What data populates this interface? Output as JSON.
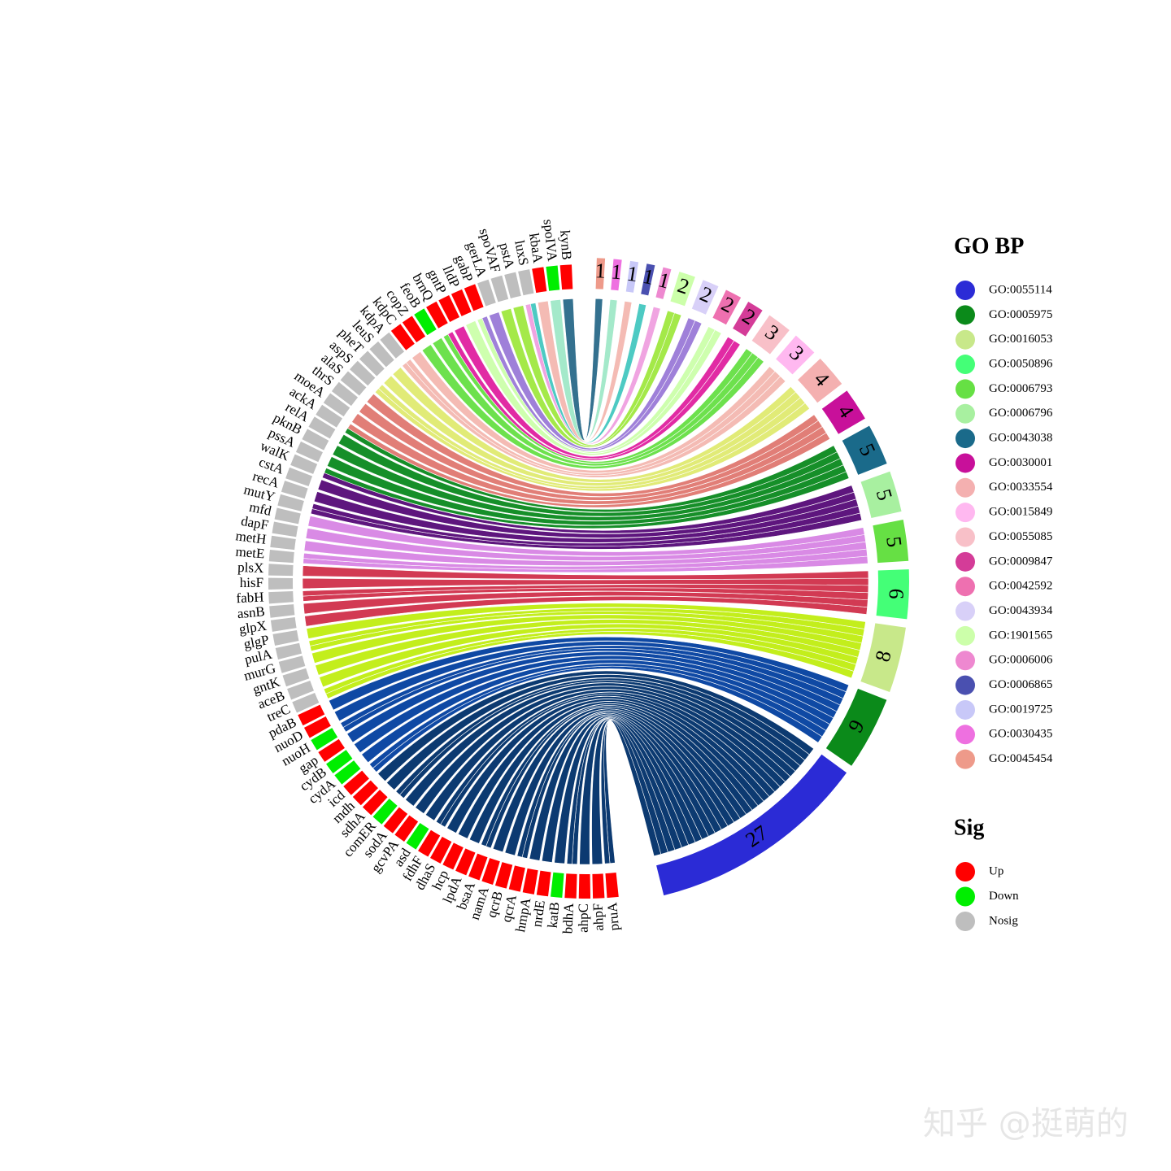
{
  "chart_data": {
    "type": "chord",
    "terms": [
      {
        "name": "GO:0055114",
        "count": 27,
        "color": "#2b2bd6",
        "link_color": "#00306a"
      },
      {
        "name": "GO:0005975",
        "count": 9,
        "color": "#0b8a1a",
        "link_color": "#0340a0"
      },
      {
        "name": "GO:0016053",
        "count": 8,
        "color": "#c8e88a",
        "link_color": "#c0ee10"
      },
      {
        "name": "GO:0050896",
        "count": 6,
        "color": "#44ff77",
        "link_color": "#d0304a"
      },
      {
        "name": "GO:0006793",
        "count": 5,
        "color": "#66e044",
        "link_color": "#d884e4"
      },
      {
        "name": "GO:0006796",
        "count": 5,
        "color": "#a8f0a0",
        "link_color": "#560a78"
      },
      {
        "name": "GO:0043038",
        "count": 5,
        "color": "#1a6a8a",
        "link_color": "#0a8a1e"
      },
      {
        "name": "GO:0030001",
        "count": 4,
        "color": "#c8109a",
        "link_color": "#e07870"
      },
      {
        "name": "GO:0033554",
        "count": 4,
        "color": "#f4b0b0",
        "link_color": "#e0ea70"
      },
      {
        "name": "GO:0015849",
        "count": 3,
        "color": "#ffb8f0",
        "link_color": "#f4b8b0"
      },
      {
        "name": "GO:0055085",
        "count": 3,
        "color": "#f8c0c8",
        "link_color": "#66e044"
      },
      {
        "name": "GO:0009847",
        "count": 2,
        "color": "#d43c98",
        "link_color": "#e020a0"
      },
      {
        "name": "GO:0042592",
        "count": 2,
        "color": "#ee70b0",
        "link_color": "#ccffaa"
      },
      {
        "name": "GO:0043934",
        "count": 2,
        "color": "#d8d0f8",
        "link_color": "#9a7ad8"
      },
      {
        "name": "GO:1901565",
        "count": 2,
        "color": "#ccffaa",
        "link_color": "#a0e840"
      },
      {
        "name": "GO:0006006",
        "count": 1,
        "color": "#ee88d0",
        "link_color": "#f0a0e0"
      },
      {
        "name": "GO:0006865",
        "count": 1,
        "color": "#4a50b0",
        "link_color": "#44c8c0"
      },
      {
        "name": "GO:0019725",
        "count": 1,
        "color": "#c8c8f8",
        "link_color": "#f4b8b0"
      },
      {
        "name": "GO:0030435",
        "count": 1,
        "color": "#ee70e0",
        "link_color": "#a0e8c8"
      },
      {
        "name": "GO:0045454",
        "count": 1,
        "color": "#ee9a8a",
        "link_color": "#2a6a8a"
      }
    ],
    "genes": [
      {
        "name": "pruA",
        "sig": "Up"
      },
      {
        "name": "ahpF",
        "sig": "Up"
      },
      {
        "name": "ahpC",
        "sig": "Up"
      },
      {
        "name": "bdhA",
        "sig": "Up"
      },
      {
        "name": "katB",
        "sig": "Down"
      },
      {
        "name": "nrdE",
        "sig": "Up"
      },
      {
        "name": "hmpA",
        "sig": "Up"
      },
      {
        "name": "qcrA",
        "sig": "Up"
      },
      {
        "name": "qcrB",
        "sig": "Up"
      },
      {
        "name": "namA",
        "sig": "Up"
      },
      {
        "name": "bsaA",
        "sig": "Up"
      },
      {
        "name": "lpdA",
        "sig": "Up"
      },
      {
        "name": "hcp",
        "sig": "Up"
      },
      {
        "name": "dhaS",
        "sig": "Up"
      },
      {
        "name": "fdhF",
        "sig": "Up"
      },
      {
        "name": "asd",
        "sig": "Down"
      },
      {
        "name": "gcvPA",
        "sig": "Up"
      },
      {
        "name": "sodA",
        "sig": "Up"
      },
      {
        "name": "comER",
        "sig": "Down"
      },
      {
        "name": "sdhA",
        "sig": "Up"
      },
      {
        "name": "mdh",
        "sig": "Up"
      },
      {
        "name": "icd",
        "sig": "Up"
      },
      {
        "name": "cydA",
        "sig": "Down"
      },
      {
        "name": "cydB",
        "sig": "Down"
      },
      {
        "name": "gap",
        "sig": "Up"
      },
      {
        "name": "nuoH",
        "sig": "Down"
      },
      {
        "name": "nuoD",
        "sig": "Up"
      },
      {
        "name": "pdaB",
        "sig": "Up"
      },
      {
        "name": "treC",
        "sig": "Nosig"
      },
      {
        "name": "aceB",
        "sig": "Nosig"
      },
      {
        "name": "gntK",
        "sig": "Nosig"
      },
      {
        "name": "murG",
        "sig": "Nosig"
      },
      {
        "name": "pulA",
        "sig": "Nosig"
      },
      {
        "name": "glgP",
        "sig": "Nosig"
      },
      {
        "name": "glpX",
        "sig": "Nosig"
      },
      {
        "name": "asnB",
        "sig": "Nosig"
      },
      {
        "name": "fabH",
        "sig": "Nosig"
      },
      {
        "name": "hisF",
        "sig": "Nosig"
      },
      {
        "name": "plsX",
        "sig": "Nosig"
      },
      {
        "name": "metE",
        "sig": "Nosig"
      },
      {
        "name": "metH",
        "sig": "Nosig"
      },
      {
        "name": "dapF",
        "sig": "Nosig"
      },
      {
        "name": "mfd",
        "sig": "Nosig"
      },
      {
        "name": "mutY",
        "sig": "Nosig"
      },
      {
        "name": "recA",
        "sig": "Nosig"
      },
      {
        "name": "cstA",
        "sig": "Nosig"
      },
      {
        "name": "walK",
        "sig": "Nosig"
      },
      {
        "name": "pssA",
        "sig": "Nosig"
      },
      {
        "name": "pknB",
        "sig": "Nosig"
      },
      {
        "name": "relA",
        "sig": "Nosig"
      },
      {
        "name": "ackA",
        "sig": "Nosig"
      },
      {
        "name": "moeA",
        "sig": "Nosig"
      },
      {
        "name": "thrS",
        "sig": "Nosig"
      },
      {
        "name": "alaS",
        "sig": "Nosig"
      },
      {
        "name": "aspS",
        "sig": "Nosig"
      },
      {
        "name": "pheT",
        "sig": "Nosig"
      },
      {
        "name": "leuS",
        "sig": "Nosig"
      },
      {
        "name": "kdpA",
        "sig": "Nosig"
      },
      {
        "name": "kdpC",
        "sig": "Up"
      },
      {
        "name": "copZ",
        "sig": "Up"
      },
      {
        "name": "feoB",
        "sig": "Down"
      },
      {
        "name": "brnQ",
        "sig": "Up"
      },
      {
        "name": "gntP",
        "sig": "Up"
      },
      {
        "name": "lldP",
        "sig": "Up"
      },
      {
        "name": "gabP",
        "sig": "Up"
      },
      {
        "name": "gerLA",
        "sig": "Nosig"
      },
      {
        "name": "spoVAF",
        "sig": "Nosig"
      },
      {
        "name": "pstA",
        "sig": "Nosig"
      },
      {
        "name": "luxS",
        "sig": "Nosig"
      },
      {
        "name": "kbaA",
        "sig": "Up"
      },
      {
        "name": "spoIVA",
        "sig": "Down"
      },
      {
        "name": "kynB",
        "sig": "Up"
      }
    ],
    "terms_legend_title": "GO BP",
    "sig_legend_title": "Sig",
    "sig_levels": [
      {
        "name": "Up",
        "color": "#ff0000"
      },
      {
        "name": "Down",
        "color": "#00ee00"
      },
      {
        "name": "Nosig",
        "color": "#bebebe"
      }
    ],
    "legend": "right"
  },
  "watermark": "知乎 @挺萌的"
}
